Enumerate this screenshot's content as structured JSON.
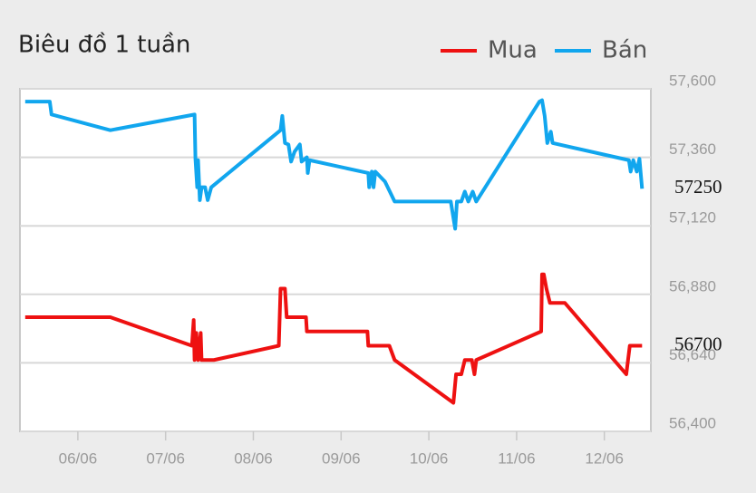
{
  "chart_data": {
    "type": "line",
    "title": "Biêu đồ 1 tuần",
    "xlim": [
      5.34,
      12.53
    ],
    "xticks": [
      {
        "value": 6,
        "label": "06/06"
      },
      {
        "value": 7,
        "label": "07/06"
      },
      {
        "value": 8,
        "label": "08/06"
      },
      {
        "value": 9,
        "label": "09/06"
      },
      {
        "value": 10,
        "label": "10/06"
      },
      {
        "value": 11,
        "label": "11/06"
      },
      {
        "value": 12,
        "label": "12/06"
      }
    ],
    "ylim": [
      56400,
      57600
    ],
    "yticks": [
      {
        "value": 56400,
        "label": "56,400"
      },
      {
        "value": 56640,
        "label": "56,640"
      },
      {
        "value": 56880,
        "label": "56,880"
      },
      {
        "value": 57120,
        "label": "57,120"
      },
      {
        "value": 57360,
        "label": "57,360"
      },
      {
        "value": 57600,
        "label": "57,600"
      }
    ],
    "grid": true,
    "series": [
      {
        "name": "Mua",
        "color": "#ee1111",
        "last": 56700,
        "x": [
          5.4,
          6.37,
          7.3,
          7.32,
          7.33,
          7.35,
          7.37,
          7.4,
          7.41,
          7.55,
          8.29,
          8.31,
          8.36,
          8.38,
          8.6,
          8.61,
          9.3,
          9.31,
          9.55,
          9.61,
          10.28,
          10.31,
          10.37,
          10.41,
          10.49,
          10.52,
          10.54,
          11.28,
          11.29,
          11.31,
          11.34,
          11.38,
          11.55,
          12.25,
          12.29,
          12.43
        ],
        "values": [
          56800,
          56800,
          56700,
          56790,
          56650,
          56745,
          56650,
          56745,
          56650,
          56650,
          56700,
          56900,
          56900,
          56800,
          56800,
          56750,
          56750,
          56700,
          56700,
          56650,
          56500,
          56600,
          56600,
          56650,
          56650,
          56600,
          56650,
          56750,
          56950,
          56950,
          56900,
          56850,
          56850,
          56600,
          56700,
          56700
        ]
      },
      {
        "name": "Bán",
        "color": "#11a6ee",
        "last": 57250,
        "x": [
          5.4,
          5.68,
          5.7,
          6.37,
          7.33,
          7.34,
          7.36,
          7.37,
          7.39,
          7.41,
          7.45,
          7.48,
          7.52,
          8.31,
          8.33,
          8.36,
          8.4,
          8.43,
          8.47,
          8.53,
          8.55,
          8.61,
          8.62,
          8.64,
          9.31,
          9.32,
          9.35,
          9.37,
          9.39,
          9.5,
          9.61,
          10.25,
          10.3,
          10.32,
          10.37,
          10.41,
          10.45,
          10.5,
          10.54,
          11.26,
          11.29,
          11.32,
          11.35,
          11.39,
          11.41,
          12.28,
          12.3,
          12.33,
          12.37,
          12.4,
          12.43
        ],
        "values": [
          57555,
          57555,
          57510,
          57455,
          57510,
          57355,
          57255,
          57350,
          57210,
          57255,
          57255,
          57210,
          57255,
          57455,
          57505,
          57410,
          57405,
          57345,
          57380,
          57405,
          57345,
          57360,
          57305,
          57350,
          57305,
          57255,
          57310,
          57255,
          57310,
          57275,
          57205,
          57205,
          57110,
          57205,
          57205,
          57240,
          57205,
          57240,
          57205,
          57555,
          57560,
          57505,
          57410,
          57450,
          57410,
          57350,
          57310,
          57350,
          57310,
          57355,
          57250
        ]
      }
    ]
  }
}
